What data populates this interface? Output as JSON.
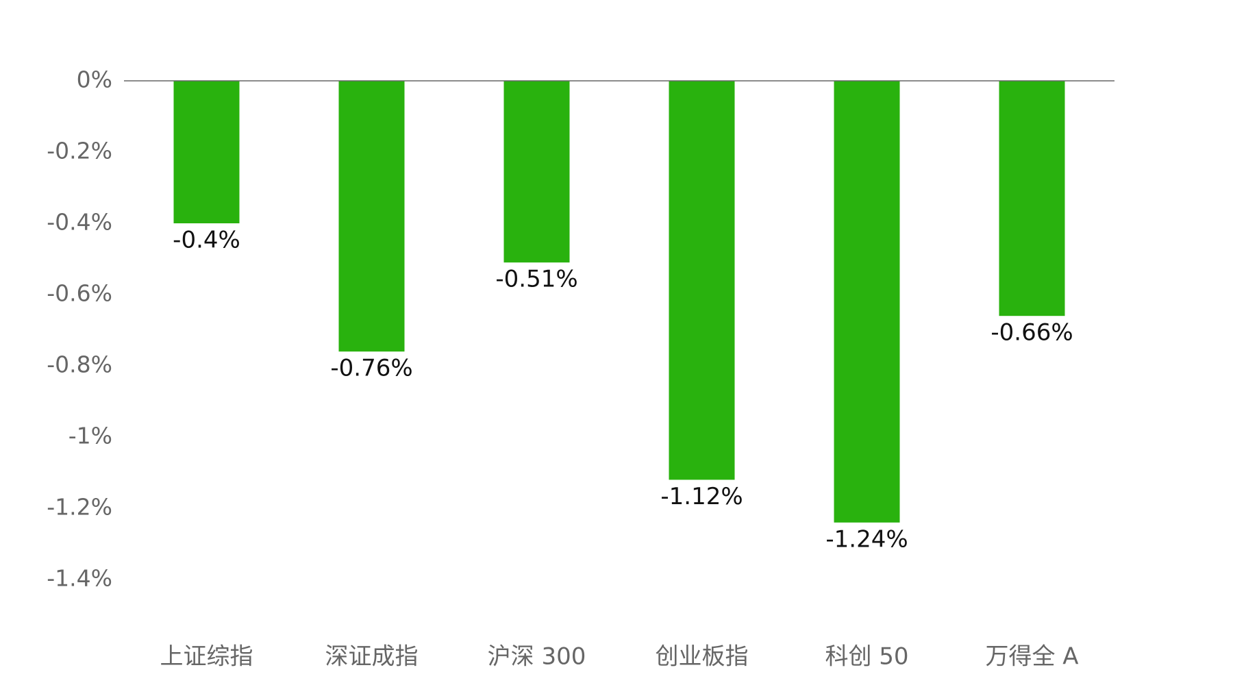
{
  "chart_data": {
    "type": "bar",
    "categories": [
      "上证综指",
      "深证成指",
      "沪深 300",
      "创业板指",
      "科创 50",
      "万得全 A"
    ],
    "values": [
      -0.4,
      -0.76,
      -0.51,
      -1.12,
      -1.24,
      -0.66
    ],
    "value_labels": [
      "-0.4%",
      "-0.76%",
      "-0.51%",
      "-1.12%",
      "-1.24%",
      "-0.66%"
    ],
    "color": "#29b20e",
    "ylim": [
      -1.4,
      0
    ],
    "yticks": [
      {
        "value": 0,
        "label": "0%"
      },
      {
        "value": -0.2,
        "label": "-0.2%"
      },
      {
        "value": -0.4,
        "label": "-0.4%"
      },
      {
        "value": -0.6,
        "label": "-0.6%"
      },
      {
        "value": -0.8,
        "label": "-0.8%"
      },
      {
        "value": -1,
        "label": "-1%"
      },
      {
        "value": -1.2,
        "label": "-1.2%"
      },
      {
        "value": -1.4,
        "label": "-1.4%"
      }
    ],
    "grid": false
  }
}
